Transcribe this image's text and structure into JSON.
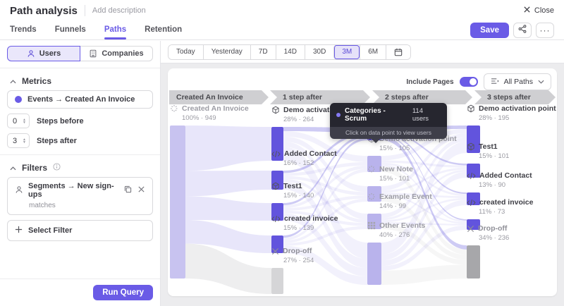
{
  "header": {
    "title": "Path analysis",
    "description_placeholder": "Add description",
    "close_label": "Close"
  },
  "nav": {
    "tabs": [
      {
        "label": "Trends",
        "active": false
      },
      {
        "label": "Funnels",
        "active": false
      },
      {
        "label": "Paths",
        "active": true
      },
      {
        "label": "Retention",
        "active": false
      }
    ],
    "save_label": "Save"
  },
  "sidebar": {
    "entity_toggle": [
      {
        "label": "Users",
        "icon": "user-icon",
        "selected": true
      },
      {
        "label": "Companies",
        "icon": "building-icon",
        "selected": false
      }
    ],
    "metrics": {
      "title": "Metrics",
      "event_label": "Events → Created An Invoice",
      "steps_before": {
        "value": "0",
        "label": "Steps before"
      },
      "steps_after": {
        "value": "3",
        "label": "Steps after"
      }
    },
    "filters": {
      "title": "Filters",
      "items": [
        {
          "label": "Segments → New sign-ups",
          "operator": "matches"
        }
      ],
      "add_label": "Select Filter"
    },
    "run_query_label": "Run Query"
  },
  "toolbar": {
    "ranges": [
      "Today",
      "Yesterday",
      "7D",
      "14D",
      "30D",
      "3M",
      "6M"
    ],
    "selected": "3M"
  },
  "chart_controls": {
    "include_pages_label": "Include Pages",
    "include_pages_on": true,
    "paths_filter_label": "All Paths"
  },
  "tooltip": {
    "name": "Categories - Scrum",
    "users": "114 users",
    "hint": "Click on data point to view users"
  },
  "colors": {
    "accent": "#6a5be6",
    "node_active": "#6254dd",
    "node_source": "#c8c3f0",
    "node_dim": "#b9b3ec",
    "node_highlight": "#5243cb",
    "drop_light": "#d5d5d7",
    "drop_dark": "#a7a7aa",
    "flow": "#7066e0"
  },
  "chart_data": {
    "type": "sankey-paths",
    "columns": [
      {
        "header": "Created An Invoice",
        "nodes": [
          {
            "icon": "sparkle-event-icon",
            "label": "Created An Invoice",
            "stat": "100% · 949",
            "style": "source",
            "dim_label": true
          }
        ]
      },
      {
        "header": "1 step after",
        "nodes": [
          {
            "icon": "cube-event-icon",
            "label": "Demo activation point",
            "stat": "28% · 264",
            "style": "active"
          },
          {
            "icon": "code-event-icon",
            "label": "Added Contact",
            "stat": "16% · 152",
            "style": "active"
          },
          {
            "icon": "cube-event-icon",
            "label": "Test1",
            "stat": "15% · 140",
            "style": "active"
          },
          {
            "icon": "code-event-icon",
            "label": "created invoice",
            "stat": "15% · 139",
            "style": "active"
          },
          {
            "icon": "dropoff-icon",
            "label": "Drop-off",
            "stat": "27% · 254",
            "style": "drop-light"
          }
        ]
      },
      {
        "header": "2 steps after",
        "nodes": [
          {
            "icon": "cube-event-icon",
            "label": "Categories - Scrum",
            "stat": "",
            "style": "highlight",
            "dim_label": true
          },
          {
            "icon": "cube-event-icon",
            "label": "Demo activation point",
            "stat": "15% · 105",
            "style": "dim",
            "dim_label": true
          },
          {
            "icon": "sparkle-event-icon",
            "label": "New Note",
            "stat": "15% · 101",
            "style": "dim",
            "dim_label": true
          },
          {
            "icon": "sparkle-event-icon",
            "label": "Example Event",
            "stat": "14% · 99",
            "style": "dim",
            "dim_label": true
          },
          {
            "icon": "grid-event-icon",
            "label": "Other Events",
            "stat": "40% · 276",
            "style": "dim",
            "dim_label": true
          }
        ]
      },
      {
        "header": "3 steps after",
        "nodes": [
          {
            "icon": "cube-event-icon",
            "label": "Demo activation point",
            "stat": "28% · 195",
            "style": "active"
          },
          {
            "icon": "cube-event-icon",
            "label": "Test1",
            "stat": "15% · 101",
            "style": "active"
          },
          {
            "icon": "code-event-icon",
            "label": "Added Contact",
            "stat": "13% · 90",
            "style": "active"
          },
          {
            "icon": "code-event-icon",
            "label": "created invoice",
            "stat": "11% · 73",
            "style": "active"
          },
          {
            "icon": "dropoff-icon",
            "label": "Drop-off",
            "stat": "34% · 236",
            "style": "drop-dark"
          }
        ]
      }
    ]
  }
}
